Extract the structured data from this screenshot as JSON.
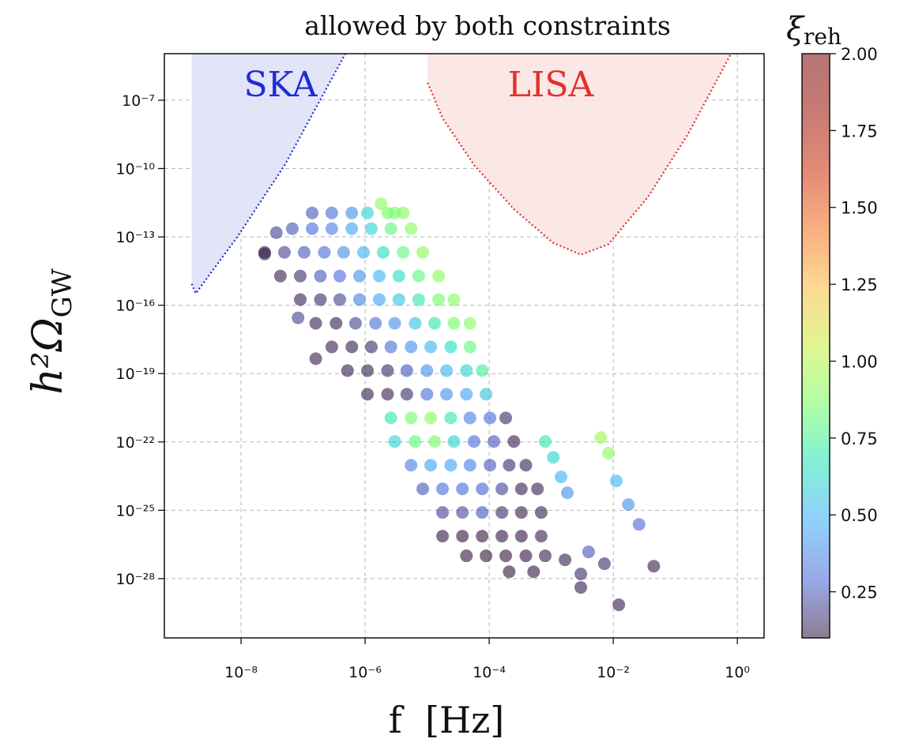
{
  "chart_data": {
    "type": "scatter",
    "title": "allowed by both constraints",
    "xlabel": "f  [Hz]",
    "ylabel": {
      "main": "h²Ω",
      "sub": "GW"
    },
    "x_scale": "log",
    "y_scale": "log",
    "xlim": [
      5.8e-10,
      2.7
    ],
    "ylim": [
      2.5e-31,
      1.1e-05
    ],
    "grid": true,
    "x_ticks": [
      1e-08,
      1e-06,
      0.0001,
      0.01,
      1
    ],
    "x_tick_labels": [
      "10⁻⁸",
      "10⁻⁶",
      "10⁻⁴",
      "10⁻²",
      "10⁰"
    ],
    "y_ticks": [
      1e-07,
      1e-10,
      1e-13,
      1e-16,
      1e-19,
      1e-22,
      1e-25,
      1e-28
    ],
    "y_tick_labels": [
      "10⁻⁷",
      "10⁻¹⁰",
      "10⁻¹³",
      "10⁻¹⁶",
      "10⁻¹⁹",
      "10⁻²²",
      "10⁻²⁵",
      "10⁻²⁸"
    ],
    "colorbar": {
      "label": {
        "main": "ξ",
        "sub": "reh"
      },
      "colormap": "turbo",
      "range": [
        0.1,
        2.0
      ],
      "ticks": [
        0.25,
        0.5,
        0.75,
        1.0,
        1.25,
        1.5,
        1.75,
        2.0
      ],
      "tick_labels": [
        "0.25",
        "0.50",
        "0.75",
        "1.00",
        "1.25",
        "1.50",
        "1.75",
        "2.00"
      ]
    },
    "regions": [
      {
        "name": "SKA",
        "color": "#1f2bd6",
        "fill": "#dfe1f7",
        "label_color": "#1f2bd6",
        "boundary": [
          [
            1.6e-09,
            1.1e-05
          ],
          [
            1.6e-09,
            8.7e-16
          ],
          [
            1.86e-09,
            3.3e-16
          ],
          [
            8.7e-09,
            1e-13
          ],
          [
            5e-08,
            1.35e-10
          ],
          [
            4.8e-07,
            1.1e-05
          ]
        ]
      },
      {
        "name": "LISA",
        "color": "#e0302a",
        "fill": "#fbe4e2",
        "label_color": "#e0302a",
        "boundary": [
          [
            1.02e-05,
            1.1e-05
          ],
          [
            1.02e-05,
            5.8e-07
          ],
          [
            1.78e-05,
            1.6e-08
          ],
          [
            5.8e-05,
            1.35e-10
          ],
          [
            0.00025,
            1.66e-12
          ],
          [
            0.00107,
            5.5e-14
          ],
          [
            0.003,
            1.66e-14
          ],
          [
            0.0083,
            4.7e-14
          ],
          [
            0.036,
            5.5e-12
          ],
          [
            0.16,
            3.2e-09
          ],
          [
            0.79,
            1.1e-05
          ]
        ]
      }
    ],
    "point_columns": [
      "f",
      "h2_Omega_GW",
      "xi_reh"
    ],
    "points": [
      [
        1.4e-07,
        1.12e-12,
        0.25
      ],
      [
        2.9e-07,
        1.12e-12,
        0.3
      ],
      [
        6.1e-07,
        1.12e-12,
        0.4
      ],
      [
        1.09e-06,
        1.12e-12,
        0.6
      ],
      [
        2.3e-06,
        1.12e-12,
        0.85
      ],
      [
        4.1e-06,
        1.12e-12,
        0.9
      ],
      [
        6.7e-08,
        2.3e-13,
        0.25
      ],
      [
        1.4e-07,
        2.3e-13,
        0.3
      ],
      [
        2.9e-07,
        2.3e-13,
        0.35
      ],
      [
        6.1e-07,
        2.3e-13,
        0.45
      ],
      [
        1.26e-06,
        2.3e-13,
        0.6
      ],
      [
        2.6e-06,
        2.3e-13,
        0.8
      ],
      [
        5.5e-06,
        2.3e-13,
        0.9
      ],
      [
        2.4e-08,
        2.1e-14,
        0.12
      ],
      [
        5e-08,
        2.1e-14,
        0.2
      ],
      [
        1.04e-07,
        2.1e-14,
        0.25
      ],
      [
        2.2e-07,
        2.1e-14,
        0.3
      ],
      [
        4.5e-07,
        2.1e-14,
        0.4
      ],
      [
        9.4e-07,
        2.1e-14,
        0.5
      ],
      [
        1.96e-06,
        2.1e-14,
        0.65
      ],
      [
        4.1e-06,
        2.1e-14,
        0.8
      ],
      [
        8.5e-06,
        2.1e-14,
        0.9
      ],
      [
        4.3e-08,
        1.91e-15,
        0.12
      ],
      [
        9e-08,
        1.91e-15,
        0.15
      ],
      [
        1.9e-07,
        1.91e-15,
        0.25
      ],
      [
        3.9e-07,
        1.91e-15,
        0.3
      ],
      [
        8.1e-07,
        1.91e-15,
        0.4
      ],
      [
        1.69e-06,
        1.91e-15,
        0.5
      ],
      [
        3.5e-06,
        1.91e-15,
        0.65
      ],
      [
        7.3e-06,
        1.91e-15,
        0.8
      ],
      [
        1.53e-05,
        1.91e-15,
        0.9
      ],
      [
        9e-08,
        1.77e-16,
        0.12
      ],
      [
        1.9e-07,
        1.77e-16,
        0.15
      ],
      [
        3.9e-07,
        1.77e-16,
        0.2
      ],
      [
        8.1e-07,
        1.77e-16,
        0.35
      ],
      [
        1.69e-06,
        1.77e-16,
        0.45
      ],
      [
        3.5e-06,
        1.77e-16,
        0.55
      ],
      [
        7.3e-06,
        1.77e-16,
        0.7
      ],
      [
        1.53e-05,
        1.77e-16,
        0.85
      ],
      [
        2.7e-05,
        1.77e-16,
        0.9
      ],
      [
        1.6e-07,
        1.61e-17,
        0.12
      ],
      [
        3.4e-07,
        1.61e-17,
        0.12
      ],
      [
        7e-07,
        1.61e-17,
        0.2
      ],
      [
        1.47e-06,
        1.61e-17,
        0.3
      ],
      [
        3e-06,
        1.61e-17,
        0.4
      ],
      [
        6.4e-06,
        1.61e-17,
        0.55
      ],
      [
        1.32e-05,
        1.61e-17,
        0.7
      ],
      [
        2.7e-05,
        1.61e-17,
        0.85
      ],
      [
        4.9e-05,
        1.61e-17,
        0.9
      ],
      [
        2.9e-07,
        1.48e-18,
        0.12
      ],
      [
        6.1e-07,
        1.48e-18,
        0.12
      ],
      [
        1.26e-06,
        1.48e-18,
        0.15
      ],
      [
        2.6e-06,
        1.48e-18,
        0.3
      ],
      [
        5.5e-06,
        1.48e-18,
        0.4
      ],
      [
        1.14e-05,
        1.48e-18,
        0.5
      ],
      [
        2.4e-05,
        1.48e-18,
        0.65
      ],
      [
        4.9e-05,
        1.48e-18,
        0.8
      ],
      [
        5.2e-07,
        1.35e-19,
        0.12
      ],
      [
        1.09e-06,
        1.35e-19,
        0.12
      ],
      [
        2.3e-06,
        1.35e-19,
        0.15
      ],
      [
        4.7e-06,
        1.35e-19,
        0.25
      ],
      [
        9.9e-06,
        1.35e-19,
        0.4
      ],
      [
        2.05e-05,
        1.35e-19,
        0.5
      ],
      [
        4.3e-05,
        1.35e-19,
        0.6
      ],
      [
        7.7e-05,
        1.35e-19,
        0.75
      ],
      [
        1.09e-06,
        1.24e-20,
        0.12
      ],
      [
        2.3e-06,
        1.24e-20,
        0.12
      ],
      [
        4.7e-06,
        1.24e-20,
        0.15
      ],
      [
        9.9e-06,
        1.24e-20,
        0.3
      ],
      [
        2.05e-05,
        1.24e-20,
        0.4
      ],
      [
        4.3e-05,
        1.24e-20,
        0.45
      ],
      [
        8.9e-05,
        1.24e-20,
        0.55
      ],
      [
        2.6e-06,
        1.13e-21,
        0.7
      ],
      [
        5.5e-06,
        1.13e-21,
        0.85
      ],
      [
        1.14e-05,
        1.13e-21,
        0.9
      ],
      [
        2.4e-05,
        1.13e-21,
        0.7
      ],
      [
        4.9e-05,
        1.13e-21,
        0.35
      ],
      [
        0.000103,
        1.13e-21,
        0.3
      ],
      [
        0.000185,
        1.13e-21,
        0.15
      ],
      [
        3e-06,
        1.04e-22,
        0.6
      ],
      [
        6.4e-06,
        1.04e-22,
        0.8
      ],
      [
        1.32e-05,
        1.04e-22,
        0.85
      ],
      [
        2.7e-05,
        1.04e-22,
        0.6
      ],
      [
        5.7e-05,
        1.04e-22,
        0.3
      ],
      [
        0.000119,
        1.04e-22,
        0.25
      ],
      [
        0.00025,
        1.04e-22,
        0.12
      ],
      [
        5.5e-06,
        9.5e-24,
        0.35
      ],
      [
        1.14e-05,
        9.5e-24,
        0.45
      ],
      [
        2.4e-05,
        9.5e-24,
        0.45
      ],
      [
        4.9e-05,
        9.5e-24,
        0.35
      ],
      [
        0.000103,
        9.5e-24,
        0.25
      ],
      [
        0.00021,
        9.5e-24,
        0.15
      ],
      [
        0.00039,
        9.5e-24,
        0.12
      ],
      [
        8.5e-06,
        8.7e-25,
        0.25
      ],
      [
        1.77e-05,
        8.7e-25,
        0.3
      ],
      [
        3.7e-05,
        8.7e-25,
        0.3
      ],
      [
        7.7e-05,
        8.7e-25,
        0.28
      ],
      [
        0.00016,
        8.7e-25,
        0.2
      ],
      [
        0.00033,
        8.7e-25,
        0.12
      ],
      [
        0.0006,
        8.7e-25,
        0.12
      ],
      [
        1.77e-05,
        8e-26,
        0.2
      ],
      [
        3.7e-05,
        8e-26,
        0.22
      ],
      [
        7.7e-05,
        8e-26,
        0.25
      ],
      [
        0.00016,
        8e-26,
        0.15
      ],
      [
        0.00033,
        8e-26,
        0.12
      ],
      [
        0.00069,
        8e-26,
        0.12
      ],
      [
        1.77e-05,
        7.3e-27,
        0.1
      ],
      [
        3.7e-05,
        7.3e-27,
        0.1
      ],
      [
        7.7e-05,
        7.3e-27,
        0.1
      ],
      [
        0.00016,
        7.3e-27,
        0.1
      ],
      [
        0.00033,
        7.3e-27,
        0.1
      ],
      [
        0.00069,
        7.3e-27,
        0.12
      ],
      [
        4.3e-05,
        1e-27,
        0.1
      ],
      [
        8.9e-05,
        1e-27,
        0.1
      ],
      [
        0.000185,
        1e-27,
        0.1
      ],
      [
        0.00039,
        1e-27,
        0.1
      ],
      [
        0.0008,
        1e-27,
        0.12
      ],
      [
        0.00021,
        2e-28,
        0.1
      ],
      [
        0.00052,
        2e-28,
        0.1
      ],
      [
        8.3e-08,
        2.8e-17,
        0.2
      ],
      [
        1.6e-07,
        4.5e-19,
        0.12
      ],
      [
        1.8e-06,
        2.9e-12,
        0.9
      ],
      [
        3e-06,
        1.12e-12,
        0.85
      ],
      [
        3.7e-08,
        1.54e-13,
        0.2
      ],
      [
        2.4e-08,
        1.78e-14,
        0.12
      ],
      [
        0.0063,
        1.55e-22,
        0.95
      ],
      [
        0.0084,
        3.2e-23,
        0.9
      ],
      [
        0.0112,
        1.94e-24,
        0.5
      ],
      [
        0.0175,
        1.78e-25,
        0.4
      ],
      [
        0.026,
        2.4e-26,
        0.3
      ],
      [
        0.045,
        3.5e-28,
        0.12
      ],
      [
        0.0123,
        7.1e-30,
        0.12
      ],
      [
        0.003,
        4.1e-29,
        0.12
      ],
      [
        0.003,
        1.6e-28,
        0.15
      ],
      [
        0.00167,
        6.7e-28,
        0.12
      ],
      [
        0.00144,
        2.9e-24,
        0.5
      ],
      [
        0.00182,
        5.9e-25,
        0.4
      ],
      [
        0.00108,
        2.1e-23,
        0.6
      ],
      [
        0.0008,
        1.04e-22,
        0.7
      ],
      [
        0.004,
        1.49e-27,
        0.25
      ],
      [
        0.0072,
        4.5e-28,
        0.15
      ]
    ]
  }
}
